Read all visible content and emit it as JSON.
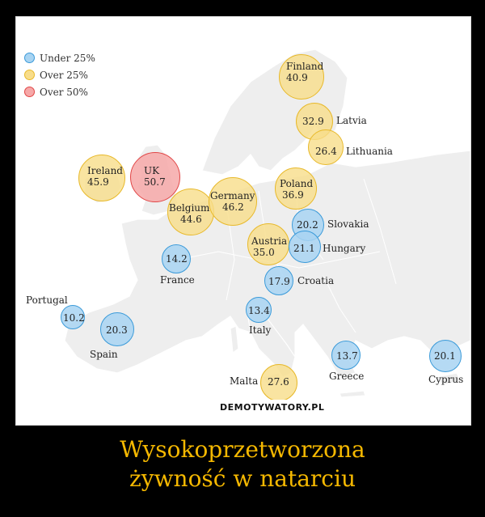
{
  "legend": [
    {
      "label": "Under 25%",
      "fill": "#a8d4f2",
      "stroke": "#3a9ad9"
    },
    {
      "label": "Over 25%",
      "fill": "#f8dd8a",
      "stroke": "#e8b92a"
    },
    {
      "label": "Over 50%",
      "fill": "#f6a8a8",
      "stroke": "#e14646"
    }
  ],
  "countries": [
    {
      "name": "Finland",
      "value": "40.9",
      "category": "over25"
    },
    {
      "name": "Latvia",
      "value": "32.9",
      "category": "over25"
    },
    {
      "name": "Lithuania",
      "value": "26.4",
      "category": "over25"
    },
    {
      "name": "Ireland",
      "value": "45.9",
      "category": "over25"
    },
    {
      "name": "UK",
      "value": "50.7",
      "category": "over50"
    },
    {
      "name": "Germany",
      "value": "46.2",
      "category": "over25"
    },
    {
      "name": "Poland",
      "value": "36.9",
      "category": "over25"
    },
    {
      "name": "Belgium",
      "value": "44.6",
      "category": "over25"
    },
    {
      "name": "Slovakia",
      "value": "20.2",
      "category": "under25"
    },
    {
      "name": "Austria",
      "value": "35.0",
      "category": "over25"
    },
    {
      "name": "Hungary",
      "value": "21.1",
      "category": "under25"
    },
    {
      "name": "France",
      "value": "14.2",
      "category": "under25"
    },
    {
      "name": "Croatia",
      "value": "17.9",
      "category": "under25"
    },
    {
      "name": "Portugal",
      "value": "10.2",
      "category": "under25"
    },
    {
      "name": "Italy",
      "value": "13.4",
      "category": "under25"
    },
    {
      "name": "Spain",
      "value": "20.3",
      "category": "under25"
    },
    {
      "name": "Greece",
      "value": "13.7",
      "category": "under25"
    },
    {
      "name": "Cyprus",
      "value": "20.1",
      "category": "under25"
    },
    {
      "name": "Malta",
      "value": "27.6",
      "category": "over25"
    }
  ],
  "watermark": "DEMOTYWATORY.PL",
  "caption": {
    "line1": "Wysokoprzetworzona",
    "line2": "żywność w natarciu"
  }
}
